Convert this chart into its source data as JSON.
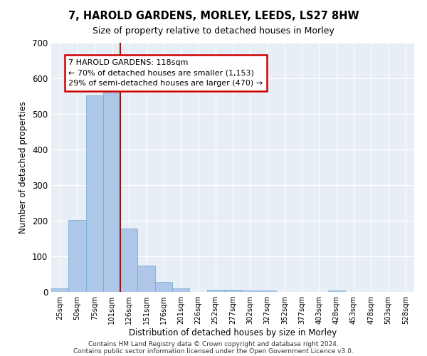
{
  "title": "7, HAROLD GARDENS, MORLEY, LEEDS, LS27 8HW",
  "subtitle": "Size of property relative to detached houses in Morley",
  "xlabel": "Distribution of detached houses by size in Morley",
  "ylabel": "Number of detached properties",
  "bin_labels": [
    "25sqm",
    "50sqm",
    "75sqm",
    "101sqm",
    "126sqm",
    "151sqm",
    "176sqm",
    "201sqm",
    "226sqm",
    "252sqm",
    "277sqm",
    "302sqm",
    "327sqm",
    "352sqm",
    "377sqm",
    "403sqm",
    "428sqm",
    "453sqm",
    "478sqm",
    "503sqm",
    "528sqm"
  ],
  "bar_values": [
    10,
    203,
    553,
    560,
    178,
    75,
    28,
    10,
    0,
    7,
    7,
    5,
    4,
    0,
    0,
    0,
    5,
    0,
    0,
    0,
    0
  ],
  "bar_color": "#aec6e8",
  "bar_edge_color": "#6aaad4",
  "vline_x": 4.0,
  "vline_color": "#8b1a1a",
  "annotation_line1": "7 HAROLD GARDENS: 118sqm",
  "annotation_line2": "← 70% of detached houses are smaller (1,153)",
  "annotation_line3": "29% of semi-detached houses are larger (470) →",
  "annotation_box_color": "#ffffff",
  "annotation_box_edge": "#cc0000",
  "ylim": [
    0,
    700
  ],
  "yticks": [
    0,
    100,
    200,
    300,
    400,
    500,
    600,
    700
  ],
  "footer_line1": "Contains HM Land Registry data © Crown copyright and database right 2024.",
  "footer_line2": "Contains public sector information licensed under the Open Government Licence v3.0.",
  "bg_color": "#e8eef5",
  "fig_bg_color": "#ffffff"
}
